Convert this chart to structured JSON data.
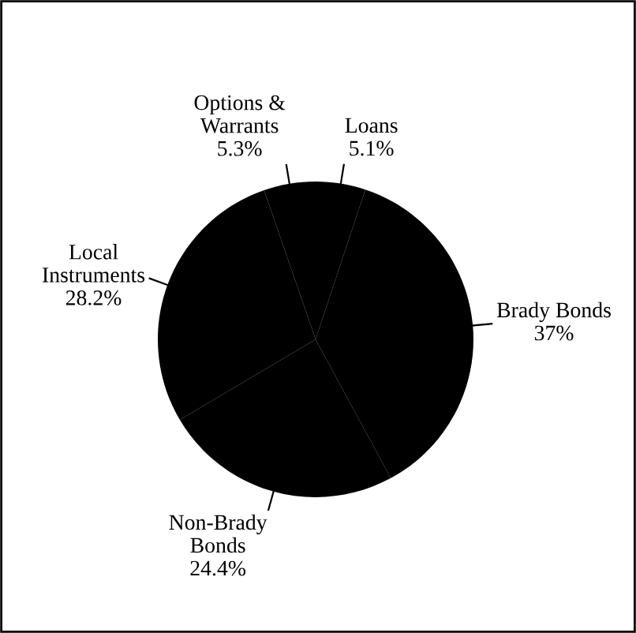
{
  "chart_data": {
    "type": "pie",
    "categories": [
      "Loans",
      "Brady Bonds",
      "Non-Brady\nBonds",
      "Local\nInstruments",
      "Options &\nWarrants"
    ],
    "values": [
      5.1,
      37,
      24.4,
      28.2,
      5.3
    ],
    "value_labels": [
      "5.1%",
      "37%",
      "24.4%",
      "28.2%",
      "5.3%"
    ],
    "colors": [
      "#000000",
      "#000000",
      "#000000",
      "#000000",
      "#000000"
    ],
    "legend": false
  }
}
